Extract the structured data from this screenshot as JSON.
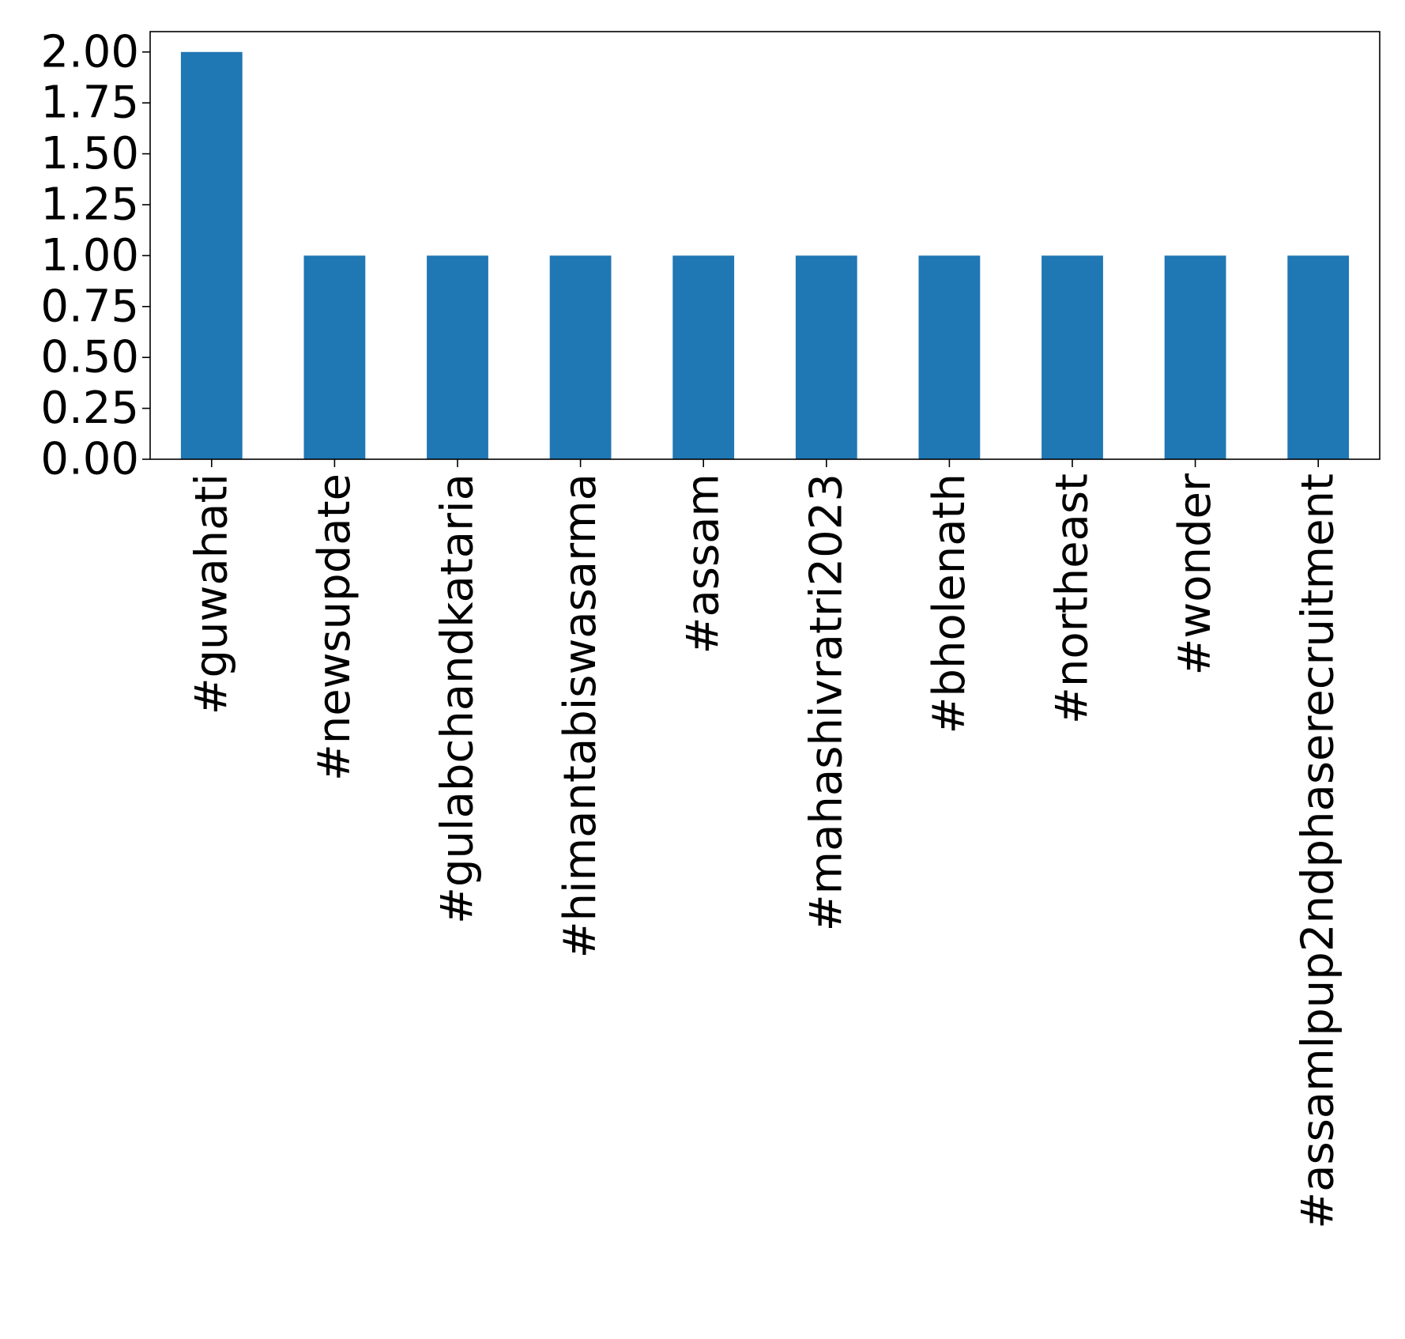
{
  "chart_data": {
    "type": "bar",
    "title": "",
    "xlabel": "",
    "ylabel": "",
    "categories": [
      "#guwahati",
      "#newsupdate",
      "#gulabchandkataria",
      "#himantabiswasarma",
      "#assam",
      "#mahashivratri2023",
      "#bholenath",
      "#northeast",
      "#wonder",
      "#assamlpup2ndphaserecruitment"
    ],
    "values": [
      2,
      1,
      1,
      1,
      1,
      1,
      1,
      1,
      1,
      1
    ],
    "ylim": [
      0,
      2.1
    ],
    "yticks": [
      "0.00",
      "0.25",
      "0.50",
      "0.75",
      "1.00",
      "1.25",
      "1.50",
      "1.75",
      "2.00"
    ],
    "bar_color": "#1f77b4",
    "grid": false,
    "legend": "none"
  }
}
